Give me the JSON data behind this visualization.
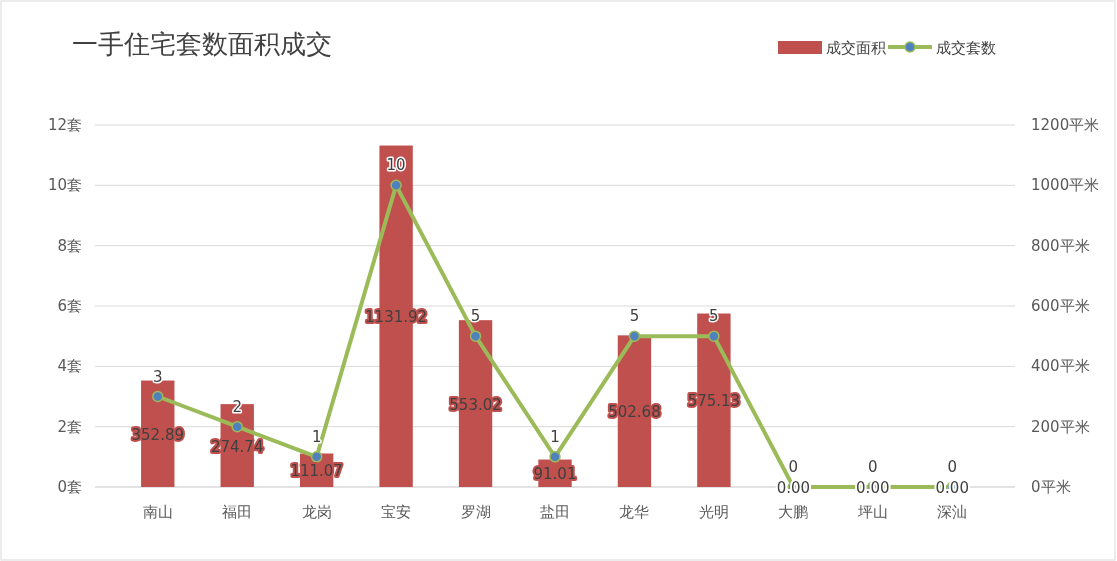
{
  "chart_data": {
    "type": "bar",
    "title": "一手住宅套数面积成交",
    "categories": [
      "南山",
      "福田",
      "龙岗",
      "宝安",
      "罗湖",
      "盐田",
      "龙华",
      "光明",
      "大鹏",
      "坪山",
      "深汕"
    ],
    "series": [
      {
        "name": "成交面积",
        "type": "bar",
        "axis": "y2",
        "color": "#c0504d",
        "values": [
          352.89,
          274.74,
          111.07,
          1131.92,
          553.02,
          91.01,
          502.68,
          575.13,
          0,
          0,
          0
        ],
        "value_labels": [
          "352.89",
          "274.74",
          "111.07",
          "1131.92",
          "553.02",
          "91.01",
          "502.68",
          "575.13",
          "0.00",
          "0.00",
          "0.00"
        ]
      },
      {
        "name": "成交套数",
        "type": "line",
        "axis": "y",
        "color": "#9bbb59",
        "marker": "circle",
        "values": [
          3,
          2,
          1,
          10,
          5,
          1,
          5,
          5,
          0,
          0,
          0
        ],
        "value_labels": [
          "3",
          "2",
          "1",
          "10",
          "5",
          "1",
          "5",
          "5",
          "0",
          "0",
          "0"
        ]
      }
    ],
    "ylim": [
      0,
      12
    ],
    "yticks": [
      {
        "value": 0,
        "label": "0套"
      },
      {
        "value": 2,
        "label": "2套"
      },
      {
        "value": 4,
        "label": "4套"
      },
      {
        "value": 6,
        "label": "6套"
      },
      {
        "value": 8,
        "label": "8套"
      },
      {
        "value": 10,
        "label": "10套"
      },
      {
        "value": 12,
        "label": "12套"
      }
    ],
    "y2lim": [
      0,
      1200
    ],
    "y2ticks": [
      {
        "value": 0,
        "label": "0平米"
      },
      {
        "value": 200,
        "label": "200平米"
      },
      {
        "value": 400,
        "label": "400平米"
      },
      {
        "value": 600,
        "label": "600平米"
      },
      {
        "value": 800,
        "label": "800平米"
      },
      {
        "value": 1000,
        "label": "1000平米"
      },
      {
        "value": 1200,
        "label": "1200平米"
      }
    ],
    "grid": "y",
    "legend": "top right"
  }
}
